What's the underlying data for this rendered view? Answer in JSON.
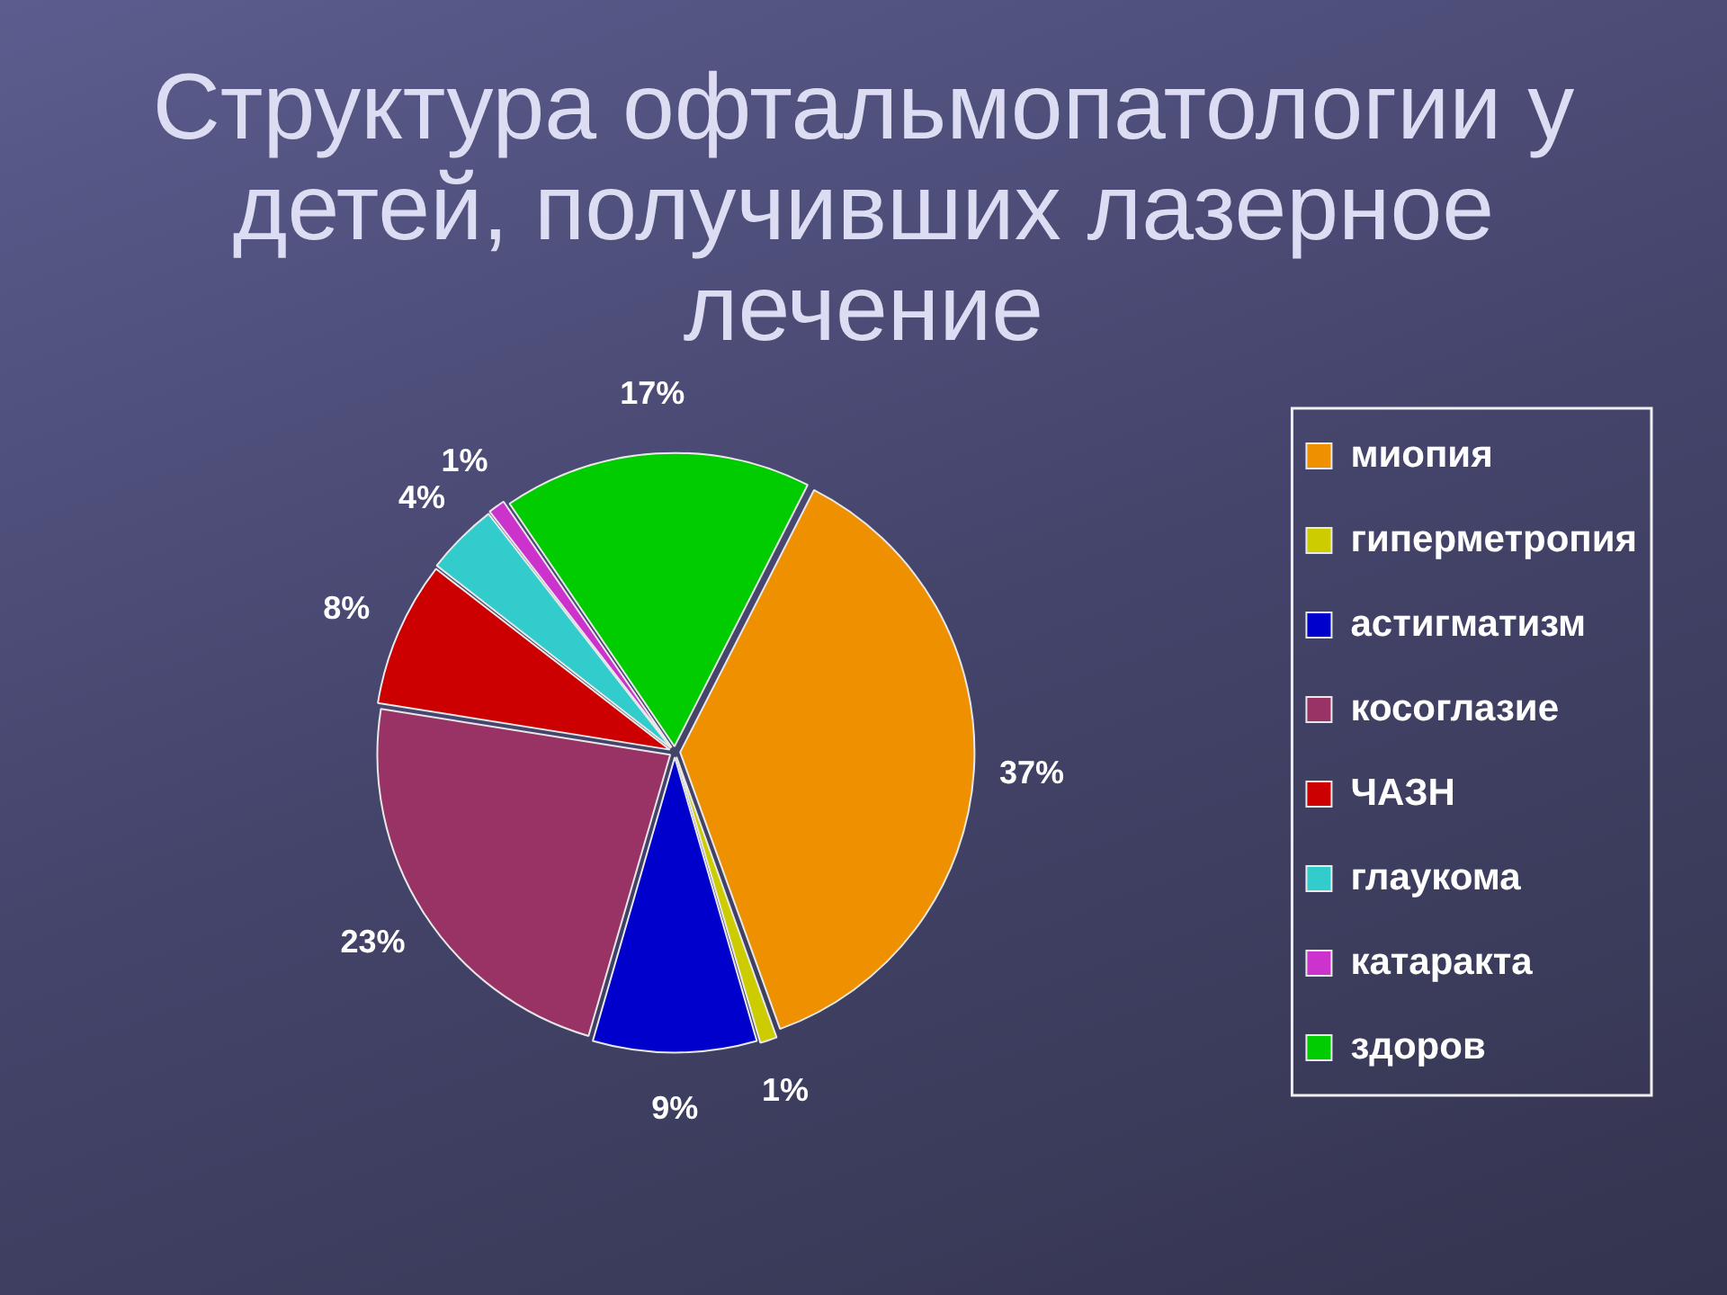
{
  "chart_data": {
    "type": "pie",
    "title": "Структура офтальмопатологии у детей, получивших лазерное лечение",
    "categories": [
      "миопия",
      "гиперметропия",
      "астигматизм",
      "косоглазие",
      "ЧАЗН",
      "глаукома",
      "катаракта",
      "здоров"
    ],
    "values": [
      37,
      1,
      9,
      23,
      8,
      4,
      1,
      17
    ],
    "colors": [
      "#ee9000",
      "#cccc00",
      "#0000cc",
      "#993366",
      "#cc0000",
      "#33cccc",
      "#cc33cc",
      "#00cc00"
    ],
    "value_labels": [
      "37%",
      "1%",
      "9%",
      "23%",
      "8%",
      "4%",
      "1%",
      "17%"
    ],
    "legend": "right"
  }
}
